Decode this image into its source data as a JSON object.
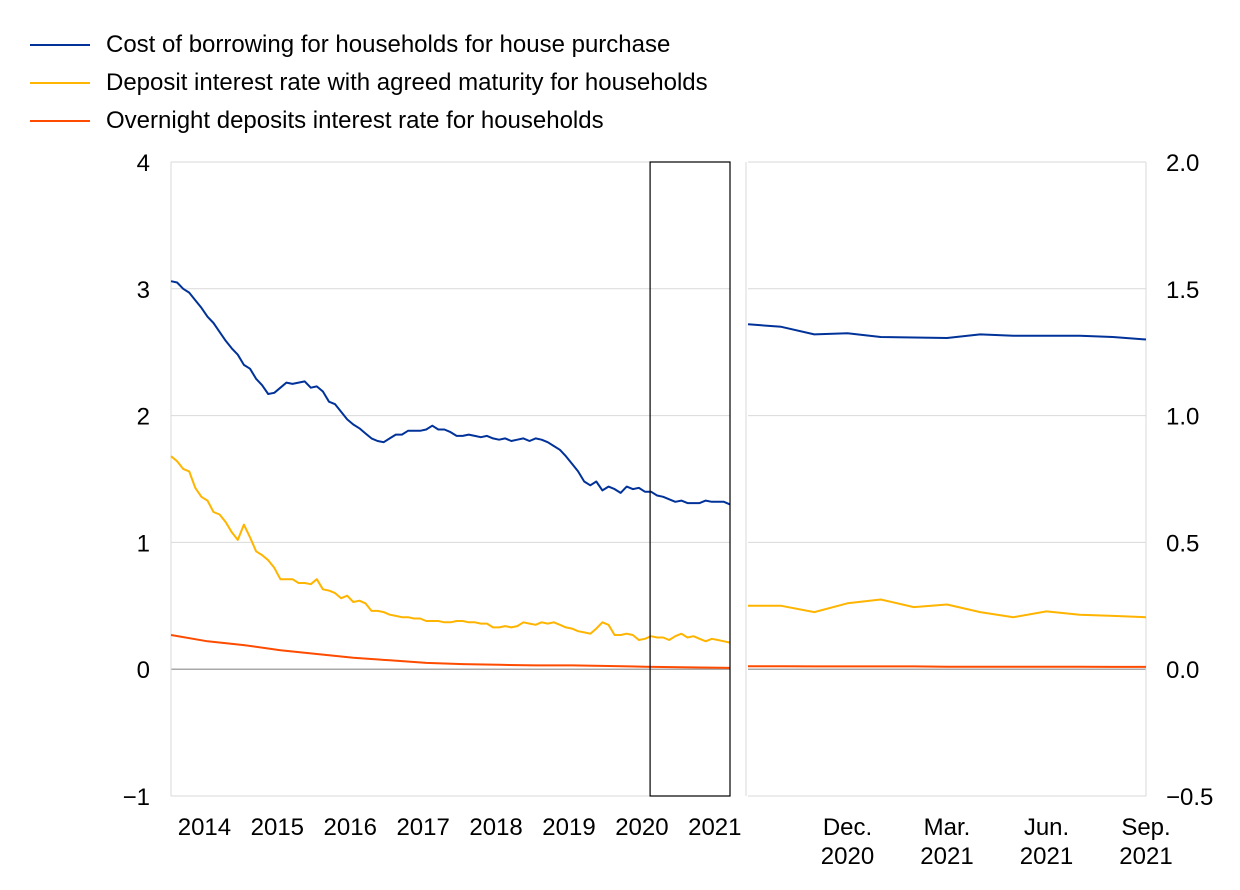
{
  "legend": [
    {
      "label": "Cost of borrowing for households for house purchase",
      "color": "#003299"
    },
    {
      "label": "Deposit interest rate with agreed maturity for households",
      "color": "#FFB400"
    },
    {
      "label": "Overnight deposits interest rate for households",
      "color": "#FF4B00"
    }
  ],
  "chart_data": [
    {
      "type": "line",
      "x_ticks": [
        "2014",
        "2015",
        "2016",
        "2017",
        "2018",
        "2019",
        "2020",
        "2021"
      ],
      "y_ticks": [
        "−1",
        "0",
        "1",
        "2",
        "3",
        "4"
      ],
      "ylim": [
        -1,
        4
      ],
      "xlim": [
        "2014-01",
        "2021-09"
      ],
      "grid": true,
      "highlight_box": {
        "from": "2020-09",
        "to": "2021-09"
      },
      "series": [
        {
          "name": "Cost of borrowing for households for house purchase",
          "color": "#003299",
          "points": [
            [
              "2014-01",
              3.06
            ],
            [
              "2014-02",
              3.05
            ],
            [
              "2014-03",
              3.0
            ],
            [
              "2014-04",
              2.97
            ],
            [
              "2014-05",
              2.91
            ],
            [
              "2014-06",
              2.85
            ],
            [
              "2014-07",
              2.78
            ],
            [
              "2014-08",
              2.73
            ],
            [
              "2014-09",
              2.66
            ],
            [
              "2014-10",
              2.59
            ],
            [
              "2014-11",
              2.53
            ],
            [
              "2014-12",
              2.48
            ],
            [
              "2015-01",
              2.4
            ],
            [
              "2015-02",
              2.37
            ],
            [
              "2015-03",
              2.29
            ],
            [
              "2015-04",
              2.24
            ],
            [
              "2015-05",
              2.17
            ],
            [
              "2015-06",
              2.18
            ],
            [
              "2015-07",
              2.22
            ],
            [
              "2015-08",
              2.26
            ],
            [
              "2015-09",
              2.25
            ],
            [
              "2015-10",
              2.26
            ],
            [
              "2015-11",
              2.27
            ],
            [
              "2015-12",
              2.22
            ],
            [
              "2016-01",
              2.23
            ],
            [
              "2016-02",
              2.19
            ],
            [
              "2016-03",
              2.11
            ],
            [
              "2016-04",
              2.09
            ],
            [
              "2016-05",
              2.03
            ],
            [
              "2016-06",
              1.97
            ],
            [
              "2016-07",
              1.93
            ],
            [
              "2016-08",
              1.9
            ],
            [
              "2016-09",
              1.86
            ],
            [
              "2016-10",
              1.82
            ],
            [
              "2016-11",
              1.8
            ],
            [
              "2016-12",
              1.79
            ],
            [
              "2017-01",
              1.82
            ],
            [
              "2017-02",
              1.85
            ],
            [
              "2017-03",
              1.85
            ],
            [
              "2017-04",
              1.88
            ],
            [
              "2017-05",
              1.88
            ],
            [
              "2017-06",
              1.88
            ],
            [
              "2017-07",
              1.89
            ],
            [
              "2017-08",
              1.92
            ],
            [
              "2017-09",
              1.89
            ],
            [
              "2017-10",
              1.89
            ],
            [
              "2017-11",
              1.87
            ],
            [
              "2017-12",
              1.84
            ],
            [
              "2018-01",
              1.84
            ],
            [
              "2018-02",
              1.85
            ],
            [
              "2018-03",
              1.84
            ],
            [
              "2018-04",
              1.83
            ],
            [
              "2018-05",
              1.84
            ],
            [
              "2018-06",
              1.82
            ],
            [
              "2018-07",
              1.81
            ],
            [
              "2018-08",
              1.82
            ],
            [
              "2018-09",
              1.8
            ],
            [
              "2018-10",
              1.81
            ],
            [
              "2018-11",
              1.82
            ],
            [
              "2018-12",
              1.8
            ],
            [
              "2019-01",
              1.82
            ],
            [
              "2019-02",
              1.81
            ],
            [
              "2019-03",
              1.79
            ],
            [
              "2019-04",
              1.76
            ],
            [
              "2019-05",
              1.73
            ],
            [
              "2019-06",
              1.68
            ],
            [
              "2019-07",
              1.62
            ],
            [
              "2019-08",
              1.56
            ],
            [
              "2019-09",
              1.48
            ],
            [
              "2019-10",
              1.45
            ],
            [
              "2019-11",
              1.48
            ],
            [
              "2019-12",
              1.41
            ],
            [
              "2020-01",
              1.44
            ],
            [
              "2020-02",
              1.42
            ],
            [
              "2020-03",
              1.39
            ],
            [
              "2020-04",
              1.44
            ],
            [
              "2020-05",
              1.42
            ],
            [
              "2020-06",
              1.43
            ],
            [
              "2020-07",
              1.4
            ],
            [
              "2020-08",
              1.4
            ],
            [
              "2020-09",
              1.37
            ],
            [
              "2020-10",
              1.36
            ],
            [
              "2020-11",
              1.34
            ],
            [
              "2020-12",
              1.32
            ],
            [
              "2021-01",
              1.33
            ],
            [
              "2021-02",
              1.31
            ],
            [
              "2021-03",
              1.31
            ],
            [
              "2021-04",
              1.31
            ],
            [
              "2021-05",
              1.33
            ],
            [
              "2021-06",
              1.32
            ],
            [
              "2021-07",
              1.32
            ],
            [
              "2021-08",
              1.32
            ],
            [
              "2021-09",
              1.3
            ]
          ]
        },
        {
          "name": "Deposit interest rate with agreed maturity for households",
          "color": "#FFB400",
          "points": [
            [
              "2014-01",
              1.68
            ],
            [
              "2014-02",
              1.64
            ],
            [
              "2014-03",
              1.58
            ],
            [
              "2014-04",
              1.56
            ],
            [
              "2014-05",
              1.43
            ],
            [
              "2014-06",
              1.36
            ],
            [
              "2014-07",
              1.33
            ],
            [
              "2014-08",
              1.24
            ],
            [
              "2014-09",
              1.22
            ],
            [
              "2014-10",
              1.16
            ],
            [
              "2014-11",
              1.08
            ],
            [
              "2014-12",
              1.02
            ],
            [
              "2015-01",
              1.14
            ],
            [
              "2015-02",
              1.04
            ],
            [
              "2015-03",
              0.93
            ],
            [
              "2015-04",
              0.9
            ],
            [
              "2015-05",
              0.86
            ],
            [
              "2015-06",
              0.8
            ],
            [
              "2015-07",
              0.71
            ],
            [
              "2015-08",
              0.71
            ],
            [
              "2015-09",
              0.71
            ],
            [
              "2015-10",
              0.68
            ],
            [
              "2015-11",
              0.68
            ],
            [
              "2015-12",
              0.67
            ],
            [
              "2016-01",
              0.71
            ],
            [
              "2016-02",
              0.63
            ],
            [
              "2016-03",
              0.62
            ],
            [
              "2016-04",
              0.6
            ],
            [
              "2016-05",
              0.56
            ],
            [
              "2016-06",
              0.58
            ],
            [
              "2016-07",
              0.53
            ],
            [
              "2016-08",
              0.54
            ],
            [
              "2016-09",
              0.52
            ],
            [
              "2016-10",
              0.46
            ],
            [
              "2016-11",
              0.46
            ],
            [
              "2016-12",
              0.45
            ],
            [
              "2017-01",
              0.43
            ],
            [
              "2017-02",
              0.42
            ],
            [
              "2017-03",
              0.41
            ],
            [
              "2017-04",
              0.41
            ],
            [
              "2017-05",
              0.4
            ],
            [
              "2017-06",
              0.4
            ],
            [
              "2017-07",
              0.38
            ],
            [
              "2017-08",
              0.38
            ],
            [
              "2017-09",
              0.38
            ],
            [
              "2017-10",
              0.37
            ],
            [
              "2017-11",
              0.37
            ],
            [
              "2017-12",
              0.38
            ],
            [
              "2018-01",
              0.38
            ],
            [
              "2018-02",
              0.37
            ],
            [
              "2018-03",
              0.37
            ],
            [
              "2018-04",
              0.36
            ],
            [
              "2018-05",
              0.36
            ],
            [
              "2018-06",
              0.33
            ],
            [
              "2018-07",
              0.33
            ],
            [
              "2018-08",
              0.34
            ],
            [
              "2018-09",
              0.33
            ],
            [
              "2018-10",
              0.34
            ],
            [
              "2018-11",
              0.37
            ],
            [
              "2018-12",
              0.36
            ],
            [
              "2019-01",
              0.35
            ],
            [
              "2019-02",
              0.37
            ],
            [
              "2019-03",
              0.36
            ],
            [
              "2019-04",
              0.37
            ],
            [
              "2019-05",
              0.35
            ],
            [
              "2019-06",
              0.33
            ],
            [
              "2019-07",
              0.32
            ],
            [
              "2019-08",
              0.3
            ],
            [
              "2019-09",
              0.29
            ],
            [
              "2019-10",
              0.28
            ],
            [
              "2019-11",
              0.32
            ],
            [
              "2019-12",
              0.37
            ],
            [
              "2020-01",
              0.35
            ],
            [
              "2020-02",
              0.27
            ],
            [
              "2020-03",
              0.27
            ],
            [
              "2020-04",
              0.28
            ],
            [
              "2020-05",
              0.27
            ],
            [
              "2020-06",
              0.23
            ],
            [
              "2020-07",
              0.24
            ],
            [
              "2020-08",
              0.26
            ],
            [
              "2020-09",
              0.25
            ],
            [
              "2020-10",
              0.25
            ],
            [
              "2020-11",
              0.23
            ],
            [
              "2020-12",
              0.26
            ],
            [
              "2021-01",
              0.28
            ],
            [
              "2021-02",
              0.25
            ],
            [
              "2021-03",
              0.26
            ],
            [
              "2021-04",
              0.24
            ],
            [
              "2021-05",
              0.22
            ],
            [
              "2021-06",
              0.24
            ],
            [
              "2021-07",
              0.23
            ],
            [
              "2021-08",
              0.22
            ],
            [
              "2021-09",
              0.21
            ]
          ]
        },
        {
          "name": "Overnight deposits interest rate for households",
          "color": "#FF4B00",
          "points": [
            [
              "2014-01",
              0.27
            ],
            [
              "2014-07",
              0.22
            ],
            [
              "2015-01",
              0.19
            ],
            [
              "2015-07",
              0.15
            ],
            [
              "2016-01",
              0.12
            ],
            [
              "2016-07",
              0.09
            ],
            [
              "2017-01",
              0.07
            ],
            [
              "2017-07",
              0.05
            ],
            [
              "2018-01",
              0.04
            ],
            [
              "2018-07",
              0.035
            ],
            [
              "2019-01",
              0.03
            ],
            [
              "2019-07",
              0.03
            ],
            [
              "2020-01",
              0.025
            ],
            [
              "2020-07",
              0.02
            ],
            [
              "2021-01",
              0.015
            ],
            [
              "2021-09",
              0.01
            ]
          ]
        }
      ]
    },
    {
      "type": "line",
      "categories": [
        "Sep. 2020",
        "Oct. 2020",
        "Nov. 2020",
        "Dec. 2020",
        "Jan. 2021",
        "Feb. 2021",
        "Mar. 2021",
        "Apr. 2021",
        "May 2021",
        "Jun. 2021",
        "Jul. 2021",
        "Aug. 2021",
        "Sep. 2021"
      ],
      "x_ticks": [
        {
          "category": "Dec. 2020",
          "line1": "Dec.",
          "line2": "2020"
        },
        {
          "category": "Mar. 2021",
          "line1": "Mar.",
          "line2": "2021"
        },
        {
          "category": "Jun. 2021",
          "line1": "Jun.",
          "line2": "2021"
        },
        {
          "category": "Sep. 2021",
          "line1": "Sep.",
          "line2": "2021"
        }
      ],
      "y_ticks": [
        "2.0",
        "1.5",
        "1.0",
        "0.5",
        "0.0",
        "−0.5"
      ],
      "ylim": [
        -0.5,
        2.0
      ],
      "grid": true,
      "series": [
        {
          "name": "Cost of borrowing for households for house purchase",
          "color": "#003299",
          "values": [
            1.36,
            1.35,
            1.32,
            1.325,
            1.31,
            1.308,
            1.306,
            1.32,
            1.315,
            1.315,
            1.315,
            1.31,
            1.3
          ]
        },
        {
          "name": "Deposit interest rate with agreed maturity for households",
          "color": "#FFB400",
          "values": [
            0.25,
            0.25,
            0.225,
            0.26,
            0.275,
            0.245,
            0.255,
            0.225,
            0.205,
            0.228,
            0.215,
            0.21,
            0.205
          ]
        },
        {
          "name": "Overnight deposits interest rate for households",
          "color": "#FF4B00",
          "values": [
            0.012,
            0.012,
            0.011,
            0.011,
            0.011,
            0.011,
            0.01,
            0.01,
            0.01,
            0.01,
            0.01,
            0.009,
            0.009
          ]
        }
      ]
    }
  ]
}
